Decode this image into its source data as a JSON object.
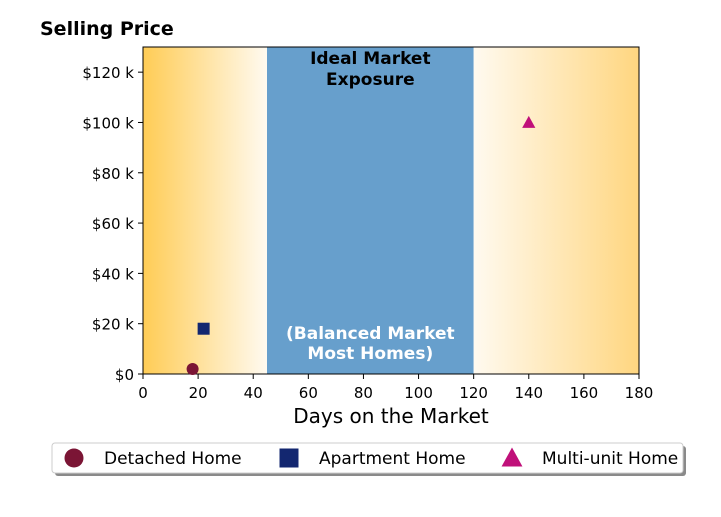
{
  "chart_data": {
    "type": "scatter",
    "title": "Selling Price",
    "xlabel": "Days on the Market",
    "ylabel": "",
    "xlim": [
      0,
      180
    ],
    "ylim": [
      0,
      130000
    ],
    "x_ticks": [
      0,
      20,
      40,
      60,
      80,
      100,
      120,
      140,
      160,
      180
    ],
    "x_tick_labels": [
      "0",
      "20",
      "40",
      "60",
      "80",
      "100",
      "120",
      "140",
      "160",
      "180"
    ],
    "y_ticks": [
      0,
      20000,
      40000,
      60000,
      80000,
      100000,
      120000
    ],
    "y_tick_labels": [
      "$0",
      "$20 k",
      "$40 k",
      "$60 k",
      "$80 k",
      "$100 k",
      "$120 k"
    ],
    "grid": false,
    "legend_position": "bottom",
    "regions": [
      {
        "x_start": 0,
        "x_end": 45,
        "kind": "gradient",
        "color": "#ffcc55",
        "fade_to": "#fffaf0",
        "direction": "fade-right"
      },
      {
        "x_start": 45,
        "x_end": 120,
        "kind": "solid",
        "color": "#679fcc",
        "label_top": [
          "Ideal Market",
          "Exposure"
        ],
        "label_bottom": [
          "(Balanced Market",
          "Most Homes)"
        ]
      },
      {
        "x_start": 120,
        "x_end": 180,
        "kind": "gradient",
        "color": "#ffd680",
        "fade_to": "#fffaf0",
        "direction": "fade-left"
      }
    ],
    "series": [
      {
        "name": "Detached Home",
        "marker": "circle",
        "color": "#7b1535",
        "x": [
          18
        ],
        "y": [
          2000
        ]
      },
      {
        "name": "Apartment Home",
        "marker": "square",
        "color": "#132770",
        "x": [
          22
        ],
        "y": [
          18000
        ]
      },
      {
        "name": "Multi-unit Home",
        "marker": "triangle",
        "color": "#c0107a",
        "x": [
          140
        ],
        "y": [
          100000
        ]
      }
    ]
  }
}
